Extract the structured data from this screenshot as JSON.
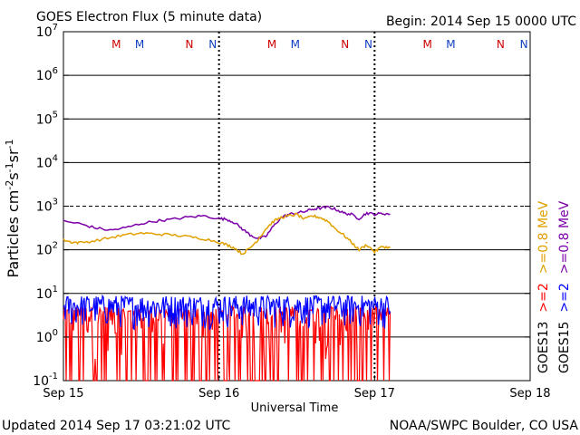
{
  "header": {
    "title": "GOES Electron Flux (5 minute data)",
    "begin": "Begin: 2014 Sep 15 0000 UTC"
  },
  "footer": {
    "updated": "Updated 2014 Sep 17 03:21:02 UTC",
    "credit": "NOAA/SWPC Boulder, CO USA"
  },
  "colors": {
    "goes13_gt08": "#e0a000",
    "goes15_gt08": "#7b00a8",
    "goes15_gt2": "#0000ff",
    "goes13_gt2": "#ff0000",
    "marker_red": "#cc0000",
    "marker_blue": "#1040c0",
    "grid": "#000000"
  },
  "chart_data": {
    "type": "line",
    "title": "GOES Electron Flux (5 minute data)",
    "xlabel": "Universal Time",
    "ylabel": "Particles cm-2 s-1 sr-1",
    "ylim_log10": [
      -1,
      7
    ],
    "xlim_days": [
      0,
      3
    ],
    "x_ticks": [
      "Sep 15",
      "Sep 16",
      "Sep 17",
      "Sep 18"
    ],
    "y_ticks": [
      {
        "base": "10",
        "exp": "7"
      },
      {
        "base": "10",
        "exp": "6"
      },
      {
        "base": "10",
        "exp": "5"
      },
      {
        "base": "10",
        "exp": "4"
      },
      {
        "base": "10",
        "exp": "3"
      },
      {
        "base": "10",
        "exp": "2"
      },
      {
        "base": "10",
        "exp": "1"
      },
      {
        "base": "10",
        "exp": "0"
      },
      {
        "base": "10",
        "exp": "-1"
      }
    ],
    "threshold_log10": 3,
    "day_boundaries": [
      1,
      2
    ],
    "midnight_and_noon_markers": [
      {
        "label": "M",
        "x": 0.34,
        "color": "red"
      },
      {
        "label": "M",
        "x": 0.49,
        "color": "blue"
      },
      {
        "label": "N",
        "x": 0.81,
        "color": "red"
      },
      {
        "label": "N",
        "x": 0.96,
        "color": "blue"
      },
      {
        "label": "M",
        "x": 1.34,
        "color": "red"
      },
      {
        "label": "M",
        "x": 1.49,
        "color": "blue"
      },
      {
        "label": "N",
        "x": 1.81,
        "color": "red"
      },
      {
        "label": "N",
        "x": 1.96,
        "color": "blue"
      },
      {
        "label": "M",
        "x": 2.34,
        "color": "red"
      },
      {
        "label": "M",
        "x": 2.49,
        "color": "blue"
      },
      {
        "label": "N",
        "x": 2.81,
        "color": "red"
      },
      {
        "label": "N",
        "x": 2.96,
        "color": "blue"
      }
    ],
    "legend": [
      {
        "label": "GOES13",
        "color": "black"
      },
      {
        "label": ">=2",
        "color": "red"
      },
      {
        "label": ">=0.8 MeV",
        "color": "orange"
      },
      {
        "label": "GOES15",
        "color": "black"
      },
      {
        "label": ">=2",
        "color": "blue"
      },
      {
        "label": ">=0.8 MeV",
        "color": "purple"
      }
    ],
    "series": [
      {
        "name": "GOES15 >=0.8 MeV",
        "color": "purple",
        "type": "line",
        "x": [
          0.0,
          0.1,
          0.2,
          0.3,
          0.4,
          0.5,
          0.6,
          0.7,
          0.8,
          0.9,
          1.0,
          1.05,
          1.1,
          1.15,
          1.2,
          1.25,
          1.3,
          1.35,
          1.4,
          1.45,
          1.5,
          1.55,
          1.6,
          1.65,
          1.7,
          1.75,
          1.8,
          1.85,
          1.9,
          1.95,
          2.0,
          2.05,
          2.1
        ],
        "y": [
          450,
          400,
          320,
          280,
          320,
          400,
          460,
          500,
          560,
          600,
          520,
          500,
          420,
          300,
          220,
          180,
          200,
          350,
          550,
          650,
          700,
          750,
          850,
          900,
          950,
          850,
          700,
          650,
          520,
          700,
          650,
          680,
          660
        ]
      },
      {
        "name": "GOES13 >=0.8 MeV",
        "color": "orange",
        "type": "line",
        "x": [
          0.0,
          0.05,
          0.1,
          0.2,
          0.3,
          0.4,
          0.5,
          0.6,
          0.7,
          0.8,
          0.9,
          1.0,
          1.05,
          1.1,
          1.15,
          1.2,
          1.25,
          1.3,
          1.35,
          1.4,
          1.45,
          1.5,
          1.55,
          1.6,
          1.65,
          1.7,
          1.75,
          1.8,
          1.85,
          1.9,
          1.95,
          2.0,
          2.05,
          2.1
        ],
        "y": [
          170,
          150,
          145,
          160,
          190,
          220,
          240,
          230,
          220,
          200,
          180,
          150,
          130,
          110,
          80,
          110,
          170,
          300,
          450,
          550,
          600,
          650,
          500,
          600,
          550,
          450,
          300,
          220,
          150,
          100,
          130,
          90,
          120,
          110
        ]
      },
      {
        "name": "GOES13 >=2 MeV",
        "color": "red",
        "type": "band",
        "x": [
          0.0,
          2.1
        ],
        "y_range": [
          0.1,
          5
        ],
        "typical": 2
      },
      {
        "name": "GOES15 >=2 MeV",
        "color": "blue",
        "type": "band",
        "x": [
          0.0,
          2.1
        ],
        "y_range": [
          1.5,
          9
        ],
        "typical": 4
      }
    ]
  }
}
